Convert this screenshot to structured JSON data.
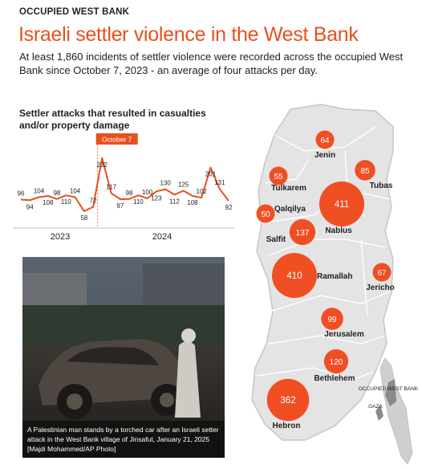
{
  "header": {
    "kicker": "OCCUPIED WEST BANK",
    "title": "Israeli settler violence in the West Bank",
    "subtitle": "At least 1,860 incidents of settler violence were recorded across the occupied West Bank since October 7, 2023 - an average of four attacks per day."
  },
  "chart_data": {
    "type": "line",
    "title": "Settler attacks that resulted in casualties and/or property damage",
    "values": [
      96,
      94,
      104,
      108,
      98,
      110,
      104,
      58,
      72,
      232,
      117,
      97,
      98,
      110,
      100,
      123,
      130,
      112,
      125,
      108,
      102,
      201,
      131,
      92
    ],
    "year_labels": [
      "2023",
      "2024"
    ],
    "annotation": "October 7",
    "annotation_index": 9,
    "line_color": "#e8501f"
  },
  "photo": {
    "caption": "A Palestinian man stands by a torched car after an Israeli setter attack in the West Bank village of Jinsafut, January 21, 2025 [Majdi Mohammed/AP Photo]"
  },
  "map": {
    "regions": [
      {
        "name": "Jenin",
        "value": 64
      },
      {
        "name": "Tubas",
        "value": 85
      },
      {
        "name": "Tulkarem",
        "value": 55
      },
      {
        "name": "Qalqilya",
        "value": 50
      },
      {
        "name": "Nablus",
        "value": 411
      },
      {
        "name": "Salfit",
        "value": 137
      },
      {
        "name": "Ramallah",
        "value": 410
      },
      {
        "name": "Jericho",
        "value": 67
      },
      {
        "name": "Jerusalem",
        "value": 99
      },
      {
        "name": "Bethlehem",
        "value": 120
      },
      {
        "name": "Hebron",
        "value": 362
      }
    ],
    "inset_label": "OCCUPIED WEST BANK",
    "gaza_label": "GAZA",
    "bubble_color": "#f04e23",
    "land_color": "#e4e4e4"
  }
}
